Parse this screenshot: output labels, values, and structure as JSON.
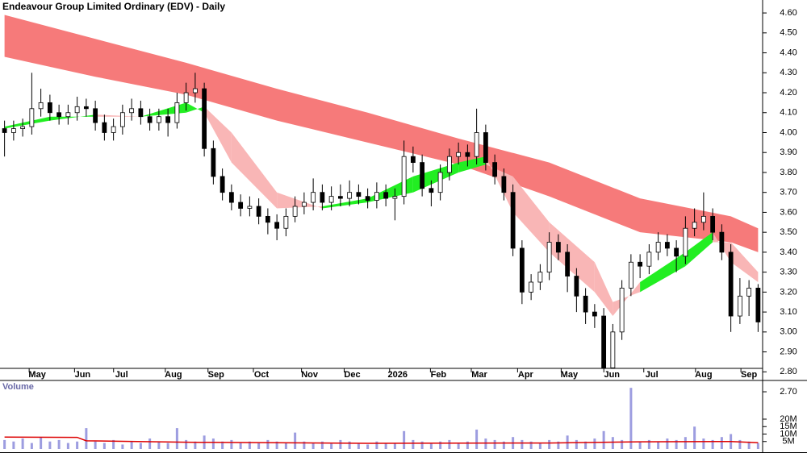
{
  "chart_data": [
    {
      "type": "candlestick",
      "title": "Endeavour Group Limited Ordinary (EDV) - Daily",
      "open": [
        4.02,
        4.0,
        4.02,
        4.03,
        4.12,
        4.15,
        4.1,
        4.08,
        4.1,
        4.13,
        4.12,
        4.05,
        4.0,
        4.03,
        4.1,
        4.12,
        4.08,
        4.05,
        4.08,
        4.05,
        4.15,
        4.2,
        4.22,
        3.92,
        3.78,
        3.7,
        3.65,
        3.62,
        3.63,
        3.58,
        3.55,
        3.52,
        3.58,
        3.63,
        3.65,
        3.7,
        3.65,
        3.68,
        3.67,
        3.7,
        3.68,
        3.66,
        3.7,
        3.67,
        3.68,
        3.88,
        3.85,
        3.72,
        3.7,
        3.8,
        3.88,
        3.9,
        3.88,
        4.0,
        3.85,
        3.78,
        3.7,
        3.42,
        3.2,
        3.25,
        3.3,
        3.45,
        3.4,
        3.28,
        3.18,
        3.1,
        3.08,
        2.82,
        3.0,
        3.22,
        3.35,
        3.33,
        3.4,
        3.45,
        3.42,
        3.38,
        3.52,
        3.55,
        3.58,
        3.5,
        3.4,
        3.08,
        3.18,
        3.22
      ],
      "high": [
        4.06,
        4.06,
        4.07,
        4.3,
        4.22,
        4.19,
        4.14,
        4.14,
        4.18,
        4.17,
        4.16,
        4.09,
        4.07,
        4.14,
        4.17,
        4.16,
        4.12,
        4.12,
        4.12,
        4.2,
        4.25,
        4.3,
        4.25,
        3.96,
        3.82,
        3.74,
        3.69,
        3.68,
        3.67,
        3.62,
        3.59,
        3.62,
        3.68,
        3.7,
        3.77,
        3.74,
        3.73,
        3.74,
        3.76,
        3.74,
        3.72,
        3.75,
        3.74,
        3.72,
        3.96,
        3.93,
        3.89,
        3.76,
        3.84,
        3.92,
        3.95,
        3.94,
        4.12,
        4.04,
        3.89,
        3.82,
        3.74,
        3.46,
        3.29,
        3.34,
        3.5,
        3.49,
        3.44,
        3.32,
        3.22,
        3.14,
        3.12,
        3.04,
        3.26,
        3.39,
        3.39,
        3.44,
        3.5,
        3.49,
        3.46,
        3.58,
        3.62,
        3.7,
        3.62,
        3.54,
        3.44,
        3.27,
        3.26,
        3.24
      ],
      "low": [
        3.88,
        3.96,
        3.98,
        3.99,
        4.08,
        4.06,
        4.04,
        4.04,
        4.06,
        4.08,
        4.01,
        3.96,
        3.96,
        3.99,
        4.06,
        4.04,
        4.01,
        4.01,
        3.98,
        4.02,
        4.11,
        4.15,
        3.88,
        3.74,
        3.66,
        3.61,
        3.58,
        3.58,
        3.54,
        3.49,
        3.46,
        3.48,
        3.55,
        3.59,
        3.61,
        3.61,
        3.61,
        3.63,
        3.63,
        3.64,
        3.62,
        3.62,
        3.63,
        3.56,
        3.64,
        3.8,
        3.68,
        3.63,
        3.66,
        3.76,
        3.84,
        3.83,
        3.84,
        3.81,
        3.74,
        3.66,
        3.38,
        3.14,
        3.16,
        3.21,
        3.26,
        3.36,
        3.2,
        3.1,
        3.04,
        3.02,
        2.8,
        2.78,
        2.96,
        3.18,
        3.27,
        3.29,
        3.36,
        3.38,
        3.3,
        3.34,
        3.48,
        3.51,
        3.46,
        3.36,
        3.0,
        3.04,
        3.08,
        3.0
      ],
      "close": [
        4.0,
        4.02,
        4.03,
        4.12,
        4.15,
        4.1,
        4.08,
        4.1,
        4.13,
        4.12,
        4.05,
        4.0,
        4.03,
        4.1,
        4.12,
        4.08,
        4.05,
        4.08,
        4.05,
        4.15,
        4.2,
        4.22,
        3.92,
        3.78,
        3.7,
        3.65,
        3.62,
        3.63,
        3.58,
        3.55,
        3.52,
        3.58,
        3.63,
        3.65,
        3.7,
        3.65,
        3.68,
        3.67,
        3.7,
        3.68,
        3.66,
        3.7,
        3.67,
        3.68,
        3.88,
        3.85,
        3.72,
        3.7,
        3.8,
        3.88,
        3.9,
        3.88,
        4.0,
        3.85,
        3.78,
        3.7,
        3.42,
        3.2,
        3.25,
        3.3,
        3.45,
        3.4,
        3.28,
        3.18,
        3.1,
        3.08,
        2.82,
        3.0,
        3.22,
        3.35,
        3.33,
        3.4,
        3.45,
        3.42,
        3.38,
        3.52,
        3.55,
        3.58,
        3.5,
        3.4,
        3.08,
        3.18,
        3.22,
        3.05
      ],
      "up_color": "#ffffff",
      "down_color": "#000000",
      "xlim": [
        -0.5,
        83.5
      ],
      "xticks": [
        {
          "value": 3.6,
          "label": "May"
        },
        {
          "value": 8.6,
          "label": "Jun"
        },
        {
          "value": 12.9,
          "label": "Jul"
        },
        {
          "value": 18.6,
          "label": "Aug"
        },
        {
          "value": 23.3,
          "label": "Sep"
        },
        {
          "value": 28.3,
          "label": "Oct"
        },
        {
          "value": 33.6,
          "label": "Nov"
        },
        {
          "value": 38.3,
          "label": "Dec"
        },
        {
          "value": 43.3,
          "label": "2026"
        },
        {
          "value": 47.8,
          "label": "Feb"
        },
        {
          "value": 52.3,
          "label": "Mar"
        },
        {
          "value": 57.4,
          "label": "Apr"
        },
        {
          "value": 62.2,
          "label": "May"
        },
        {
          "value": 66.9,
          "label": "Jun"
        },
        {
          "value": 71.3,
          "label": "Jul"
        },
        {
          "value": 77,
          "label": "Aug"
        },
        {
          "value": 82,
          "label": "Sep"
        }
      ],
      "ylim": [
        2.684,
        4.665
      ],
      "yticks": [
        {
          "value": 2.7,
          "label": "2.70"
        },
        {
          "value": 2.8,
          "label": "2.80"
        },
        {
          "value": 2.9,
          "label": "2.90"
        },
        {
          "value": 3.0,
          "label": "3.00"
        },
        {
          "value": 3.1,
          "label": "3.10"
        },
        {
          "value": 3.2,
          "label": "3.20"
        },
        {
          "value": 3.3,
          "label": "3.30"
        },
        {
          "value": 3.4,
          "label": "3.40"
        },
        {
          "value": 3.5,
          "label": "3.50"
        },
        {
          "value": 3.6,
          "label": "3.60"
        },
        {
          "value": 3.7,
          "label": "3.70"
        },
        {
          "value": 3.8,
          "label": "3.80"
        },
        {
          "value": 3.9,
          "label": "3.90"
        },
        {
          "value": 4.0,
          "label": "4.00"
        },
        {
          "value": 4.1,
          "label": "4.10"
        },
        {
          "value": 4.2,
          "label": "4.20"
        },
        {
          "value": 4.3,
          "label": "4.30"
        },
        {
          "value": 4.4,
          "label": "4.40"
        },
        {
          "value": 4.5,
          "label": "4.50"
        },
        {
          "value": 4.6,
          "label": "4.60"
        }
      ],
      "band": {
        "x": [
          0,
          10,
          20,
          30,
          40,
          50,
          60,
          70,
          80,
          83
        ],
        "upper": [
          4.59,
          4.47,
          4.35,
          4.22,
          4.1,
          3.97,
          3.85,
          3.67,
          3.58,
          3.52
        ],
        "lower": [
          4.38,
          4.28,
          4.19,
          4.06,
          3.95,
          3.84,
          3.68,
          3.5,
          3.45,
          3.4
        ],
        "color": "#f67a7a"
      },
      "ema": {
        "x": [
          0,
          5,
          10,
          15,
          20,
          22,
          25,
          30,
          35,
          40,
          45,
          50,
          53,
          56,
          60,
          65,
          67,
          70,
          75,
          78,
          80,
          83
        ],
        "fast": [
          4.03,
          4.08,
          4.08,
          4.08,
          4.15,
          4.1,
          3.85,
          3.62,
          3.63,
          3.67,
          3.78,
          3.85,
          3.88,
          3.6,
          3.4,
          3.2,
          3.08,
          3.25,
          3.4,
          3.5,
          3.35,
          3.25
        ],
        "slow": [
          4.02,
          4.06,
          4.09,
          4.08,
          4.1,
          4.13,
          4.0,
          3.7,
          3.62,
          3.65,
          3.7,
          3.8,
          3.84,
          3.78,
          3.55,
          3.35,
          3.15,
          3.2,
          3.33,
          3.45,
          3.45,
          3.3
        ],
        "up_color": "#22ee22",
        "down_color": "#f9b6b6"
      }
    },
    {
      "type": "bar",
      "title": "Volume",
      "values": [
        6,
        5,
        7,
        4,
        8,
        5,
        6,
        4,
        5,
        14,
        5,
        4,
        6,
        3,
        5,
        4,
        7,
        5,
        4,
        14,
        6,
        5,
        9,
        7,
        5,
        6,
        4,
        5,
        4,
        6,
        5,
        4,
        11,
        5,
        4,
        5,
        4,
        6,
        5,
        4,
        3,
        5,
        4,
        4,
        12,
        6,
        5,
        4,
        5,
        6,
        4,
        5,
        13,
        7,
        6,
        5,
        8,
        6,
        5,
        4,
        6,
        5,
        9,
        6,
        5,
        7,
        12,
        8,
        6,
        41,
        5,
        6,
        5,
        7,
        6,
        8,
        15,
        7,
        6,
        8,
        10,
        6,
        5,
        4
      ],
      "color": "#9d9de0",
      "ylim": [
        0,
        40
      ],
      "yticks": [
        {
          "value": 5,
          "label": "5M"
        },
        {
          "value": 10,
          "label": "10M"
        },
        {
          "value": 15,
          "label": "15M"
        },
        {
          "value": 20,
          "label": "20M"
        }
      ],
      "ma": {
        "x": [
          0,
          8,
          9,
          20,
          40,
          60,
          70,
          80,
          83
        ],
        "values": [
          8.0,
          7.8,
          5.5,
          4.5,
          3.8,
          4.0,
          4.8,
          5.0,
          4.2
        ],
        "color": "#dd0000"
      }
    }
  ]
}
